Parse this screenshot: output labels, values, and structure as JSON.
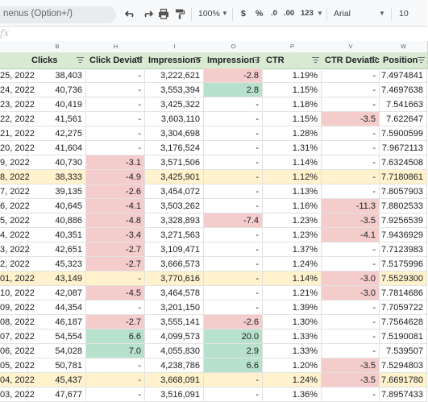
{
  "toolbar": {
    "menu_search": "nenus (Option+/)",
    "zoom": "100%",
    "currency": "$",
    "percent": "%",
    "dec_decrease": ".0",
    "dec_increase": ".00",
    "number_format": "123",
    "font": "Arial",
    "font_size": "10"
  },
  "formula_bar": {
    "fx": "fx",
    "value": ""
  },
  "column_letters": [
    "",
    "B",
    "H",
    "I",
    "O",
    "P",
    "V",
    "W"
  ],
  "headers": [
    "",
    "Clicks",
    "Click Deviati",
    "Impressions",
    "Impression I",
    "CTR",
    "CTR Deviatic",
    "Position"
  ],
  "colors": {
    "header_bg": "#d9ead3",
    "highlight_row": "#fff2cc",
    "negative": "#f4cccc",
    "positive": "#b7e1cd"
  },
  "rows": [
    {
      "date": "25, 2022",
      "clicks": "38,403",
      "cdev": "-",
      "impr": "3,222,621",
      "idev": "-2.8",
      "ctr": "1.19%",
      "ctrdev": "-",
      "pos": "7.4974841",
      "hl": false,
      "c_cdev": "",
      "c_idev": "neg",
      "c_ctrdev": ""
    },
    {
      "date": "24, 2022",
      "clicks": "40,736",
      "cdev": "-",
      "impr": "3,553,394",
      "idev": "2.8",
      "ctr": "1.15%",
      "ctrdev": "-",
      "pos": "7.4697638",
      "hl": false,
      "c_cdev": "",
      "c_idev": "pos",
      "c_ctrdev": ""
    },
    {
      "date": "23, 2022",
      "clicks": "40,419",
      "cdev": "-",
      "impr": "3,425,322",
      "idev": "-",
      "ctr": "1.18%",
      "ctrdev": "-",
      "pos": "7.541663",
      "hl": false,
      "c_cdev": "",
      "c_idev": "",
      "c_ctrdev": ""
    },
    {
      "date": "22, 2022",
      "clicks": "41,561",
      "cdev": "-",
      "impr": "3,603,110",
      "idev": "-",
      "ctr": "1.15%",
      "ctrdev": "-3.5",
      "pos": "7.622647",
      "hl": false,
      "c_cdev": "",
      "c_idev": "",
      "c_ctrdev": "neg"
    },
    {
      "date": "21, 2022",
      "clicks": "42,275",
      "cdev": "-",
      "impr": "3,304,698",
      "idev": "-",
      "ctr": "1.28%",
      "ctrdev": "-",
      "pos": "7.5900599",
      "hl": false,
      "c_cdev": "",
      "c_idev": "",
      "c_ctrdev": ""
    },
    {
      "date": "20, 2022",
      "clicks": "41,604",
      "cdev": "-",
      "impr": "3,176,524",
      "idev": "-",
      "ctr": "1.31%",
      "ctrdev": "-",
      "pos": "7.9672113",
      "hl": false,
      "c_cdev": "",
      "c_idev": "",
      "c_ctrdev": ""
    },
    {
      "date": "9, 2022",
      "clicks": "40,730",
      "cdev": "-3.1",
      "impr": "3,571,506",
      "idev": "-",
      "ctr": "1.14%",
      "ctrdev": "-",
      "pos": "7.6324508",
      "hl": false,
      "c_cdev": "neg",
      "c_idev": "",
      "c_ctrdev": ""
    },
    {
      "date": "8, 2022",
      "clicks": "38,333",
      "cdev": "-4.9",
      "impr": "3,425,901",
      "idev": "-",
      "ctr": "1.12%",
      "ctrdev": "-",
      "pos": "7.7180861",
      "hl": true,
      "c_cdev": "neg",
      "c_idev": "",
      "c_ctrdev": ""
    },
    {
      "date": "7, 2022",
      "clicks": "39,135",
      "cdev": "-2.6",
      "impr": "3,454,072",
      "idev": "-",
      "ctr": "1.13%",
      "ctrdev": "-",
      "pos": "7.8057903",
      "hl": false,
      "c_cdev": "neg",
      "c_idev": "",
      "c_ctrdev": ""
    },
    {
      "date": "6, 2022",
      "clicks": "40,645",
      "cdev": "-4.1",
      "impr": "3,503,262",
      "idev": "-",
      "ctr": "1.16%",
      "ctrdev": "-11.3",
      "pos": "7.8802533",
      "hl": false,
      "c_cdev": "neg",
      "c_idev": "",
      "c_ctrdev": "neg"
    },
    {
      "date": "5, 2022",
      "clicks": "40,886",
      "cdev": "-4.8",
      "impr": "3,328,893",
      "idev": "-7.4",
      "ctr": "1.23%",
      "ctrdev": "-3.5",
      "pos": "7.9256539",
      "hl": false,
      "c_cdev": "neg",
      "c_idev": "neg",
      "c_ctrdev": "neg"
    },
    {
      "date": "4, 2022",
      "clicks": "40,351",
      "cdev": "-3.4",
      "impr": "3,271,563",
      "idev": "-",
      "ctr": "1.23%",
      "ctrdev": "-4.1",
      "pos": "7.9436929",
      "hl": false,
      "c_cdev": "neg",
      "c_idev": "",
      "c_ctrdev": "neg"
    },
    {
      "date": "3, 2022",
      "clicks": "42,651",
      "cdev": "-2.7",
      "impr": "3,109,471",
      "idev": "-",
      "ctr": "1.37%",
      "ctrdev": "-",
      "pos": "7.7123983",
      "hl": false,
      "c_cdev": "neg",
      "c_idev": "",
      "c_ctrdev": ""
    },
    {
      "date": "2, 2022",
      "clicks": "45,323",
      "cdev": "-2.7",
      "impr": "3,666,573",
      "idev": "-",
      "ctr": "1.24%",
      "ctrdev": "-",
      "pos": "7.5175996",
      "hl": false,
      "c_cdev": "neg",
      "c_idev": "",
      "c_ctrdev": ""
    },
    {
      "date": "01, 2022",
      "clicks": "43,149",
      "cdev": "-",
      "impr": "3,770,616",
      "idev": "-",
      "ctr": "1.14%",
      "ctrdev": "-3.0",
      "pos": "7.5529300",
      "hl": true,
      "c_cdev": "",
      "c_idev": "",
      "c_ctrdev": "neg"
    },
    {
      "date": "10, 2022",
      "clicks": "42,087",
      "cdev": "-4.5",
      "impr": "3,464,578",
      "idev": "-",
      "ctr": "1.21%",
      "ctrdev": "-3.0",
      "pos": "7.7814686",
      "hl": false,
      "c_cdev": "neg",
      "c_idev": "",
      "c_ctrdev": "neg"
    },
    {
      "date": "09, 2022",
      "clicks": "44,354",
      "cdev": "-",
      "impr": "3,201,150",
      "idev": "-",
      "ctr": "1.39%",
      "ctrdev": "-",
      "pos": "7.7059722",
      "hl": false,
      "c_cdev": "",
      "c_idev": "",
      "c_ctrdev": ""
    },
    {
      "date": "08, 2022",
      "clicks": "46,187",
      "cdev": "-2.7",
      "impr": "3,555,141",
      "idev": "-2.6",
      "ctr": "1.30%",
      "ctrdev": "-",
      "pos": "7.7564628",
      "hl": false,
      "c_cdev": "neg",
      "c_idev": "neg",
      "c_ctrdev": ""
    },
    {
      "date": "07, 2022",
      "clicks": "54,554",
      "cdev": "6.6",
      "impr": "4,099,573",
      "idev": "20.0",
      "ctr": "1.33%",
      "ctrdev": "-",
      "pos": "7.5190081",
      "hl": false,
      "c_cdev": "pos",
      "c_idev": "pos",
      "c_ctrdev": ""
    },
    {
      "date": "06, 2022",
      "clicks": "54,028",
      "cdev": "7.0",
      "impr": "4,055,830",
      "idev": "2.9",
      "ctr": "1.33%",
      "ctrdev": "-",
      "pos": "7.539507",
      "hl": false,
      "c_cdev": "pos",
      "c_idev": "pos",
      "c_ctrdev": ""
    },
    {
      "date": "05, 2022",
      "clicks": "50,781",
      "cdev": "-",
      "impr": "4,238,786",
      "idev": "6.6",
      "ctr": "1.20%",
      "ctrdev": "-3.5",
      "pos": "7.5294803",
      "hl": false,
      "c_cdev": "",
      "c_idev": "pos",
      "c_ctrdev": "neg"
    },
    {
      "date": "04, 2022",
      "clicks": "45,437",
      "cdev": "-",
      "impr": "3,668,091",
      "idev": "-",
      "ctr": "1.24%",
      "ctrdev": "-3.5",
      "pos": "7.6691780",
      "hl": true,
      "c_cdev": "",
      "c_idev": "",
      "c_ctrdev": "neg"
    },
    {
      "date": "03, 2022",
      "clicks": "47,677",
      "cdev": "-",
      "impr": "3,516,091",
      "idev": "-",
      "ctr": "1.36%",
      "ctrdev": "-",
      "pos": "7.8957433",
      "hl": false,
      "c_cdev": "",
      "c_idev": "",
      "c_ctrdev": ""
    }
  ]
}
